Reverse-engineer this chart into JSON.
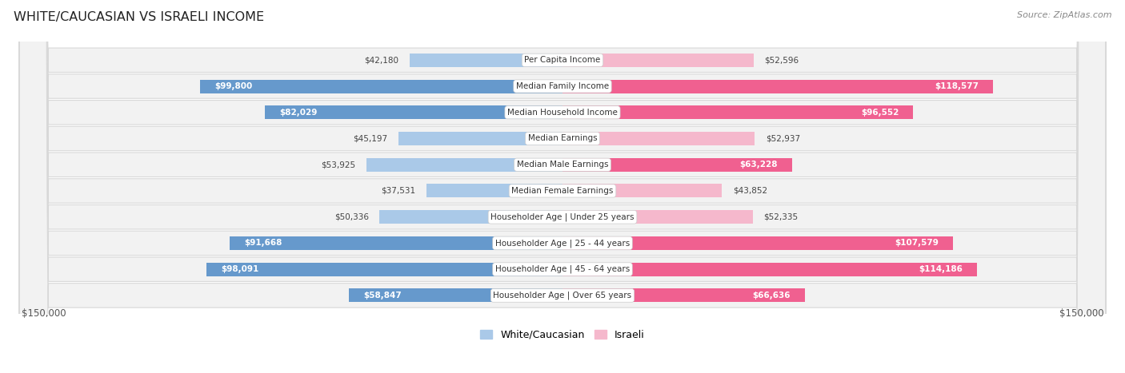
{
  "title": "WHITE/CAUCASIAN VS ISRAELI INCOME",
  "source": "Source: ZipAtlas.com",
  "categories": [
    "Per Capita Income",
    "Median Family Income",
    "Median Household Income",
    "Median Earnings",
    "Median Male Earnings",
    "Median Female Earnings",
    "Householder Age | Under 25 years",
    "Householder Age | 25 - 44 years",
    "Householder Age | 45 - 64 years",
    "Householder Age | Over 65 years"
  ],
  "white_values": [
    42180,
    99800,
    82029,
    45197,
    53925,
    37531,
    50336,
    91668,
    98091,
    58847
  ],
  "israeli_values": [
    52596,
    118577,
    96552,
    52937,
    63228,
    43852,
    52335,
    107579,
    114186,
    66636
  ],
  "white_labels": [
    "$42,180",
    "$99,800",
    "$82,029",
    "$45,197",
    "$53,925",
    "$37,531",
    "$50,336",
    "$91,668",
    "$98,091",
    "$58,847"
  ],
  "israeli_labels": [
    "$52,596",
    "$118,577",
    "$96,552",
    "$52,937",
    "$63,228",
    "$43,852",
    "$52,335",
    "$107,579",
    "$114,186",
    "$66,636"
  ],
  "white_color_light": "#aac9e8",
  "white_color_dark": "#6699cc",
  "israeli_color_light": "#f5b8cc",
  "israeli_color_dark": "#f06090",
  "inside_label_threshold": 55000,
  "max_value": 150000,
  "bg_color": "#ffffff",
  "row_bg_color": "#f2f2f2",
  "row_border_color": "#d8d8d8",
  "legend_white": "White/Caucasian",
  "legend_israeli": "Israeli"
}
